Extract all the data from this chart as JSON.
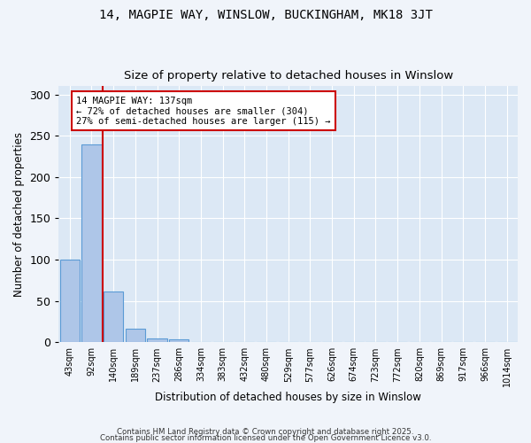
{
  "title": "14, MAGPIE WAY, WINSLOW, BUCKINGHAM, MK18 3JT",
  "subtitle": "Size of property relative to detached houses in Winslow",
  "xlabel": "Distribution of detached houses by size in Winslow",
  "ylabel": "Number of detached properties",
  "bar_labels": [
    "43sqm",
    "92sqm",
    "140sqm",
    "189sqm",
    "237sqm",
    "286sqm",
    "334sqm",
    "383sqm",
    "432sqm",
    "480sqm",
    "529sqm",
    "577sqm",
    "626sqm",
    "674sqm",
    "723sqm",
    "772sqm",
    "820sqm",
    "869sqm",
    "917sqm",
    "966sqm",
    "1014sqm"
  ],
  "bar_values": [
    100,
    240,
    62,
    16,
    5,
    4,
    0,
    0,
    0,
    0,
    0,
    0,
    0,
    0,
    0,
    0,
    0,
    0,
    0,
    0,
    0
  ],
  "bar_color": "#aec6e8",
  "bar_edge_color": "#5b9bd5",
  "ylim": [
    0,
    310
  ],
  "yticks": [
    0,
    50,
    100,
    150,
    200,
    250,
    300
  ],
  "property_line_color": "#cc0000",
  "annotation_text": "14 MAGPIE WAY: 137sqm\n← 72% of detached houses are smaller (304)\n27% of semi-detached houses are larger (115) →",
  "annotation_box_color": "#ffffff",
  "annotation_box_edge": "#cc0000",
  "bg_color": "#dce8f5",
  "fig_bg_color": "#f0f4fa",
  "footer_line1": "Contains HM Land Registry data © Crown copyright and database right 2025.",
  "footer_line2": "Contains public sector information licensed under the Open Government Licence v3.0."
}
